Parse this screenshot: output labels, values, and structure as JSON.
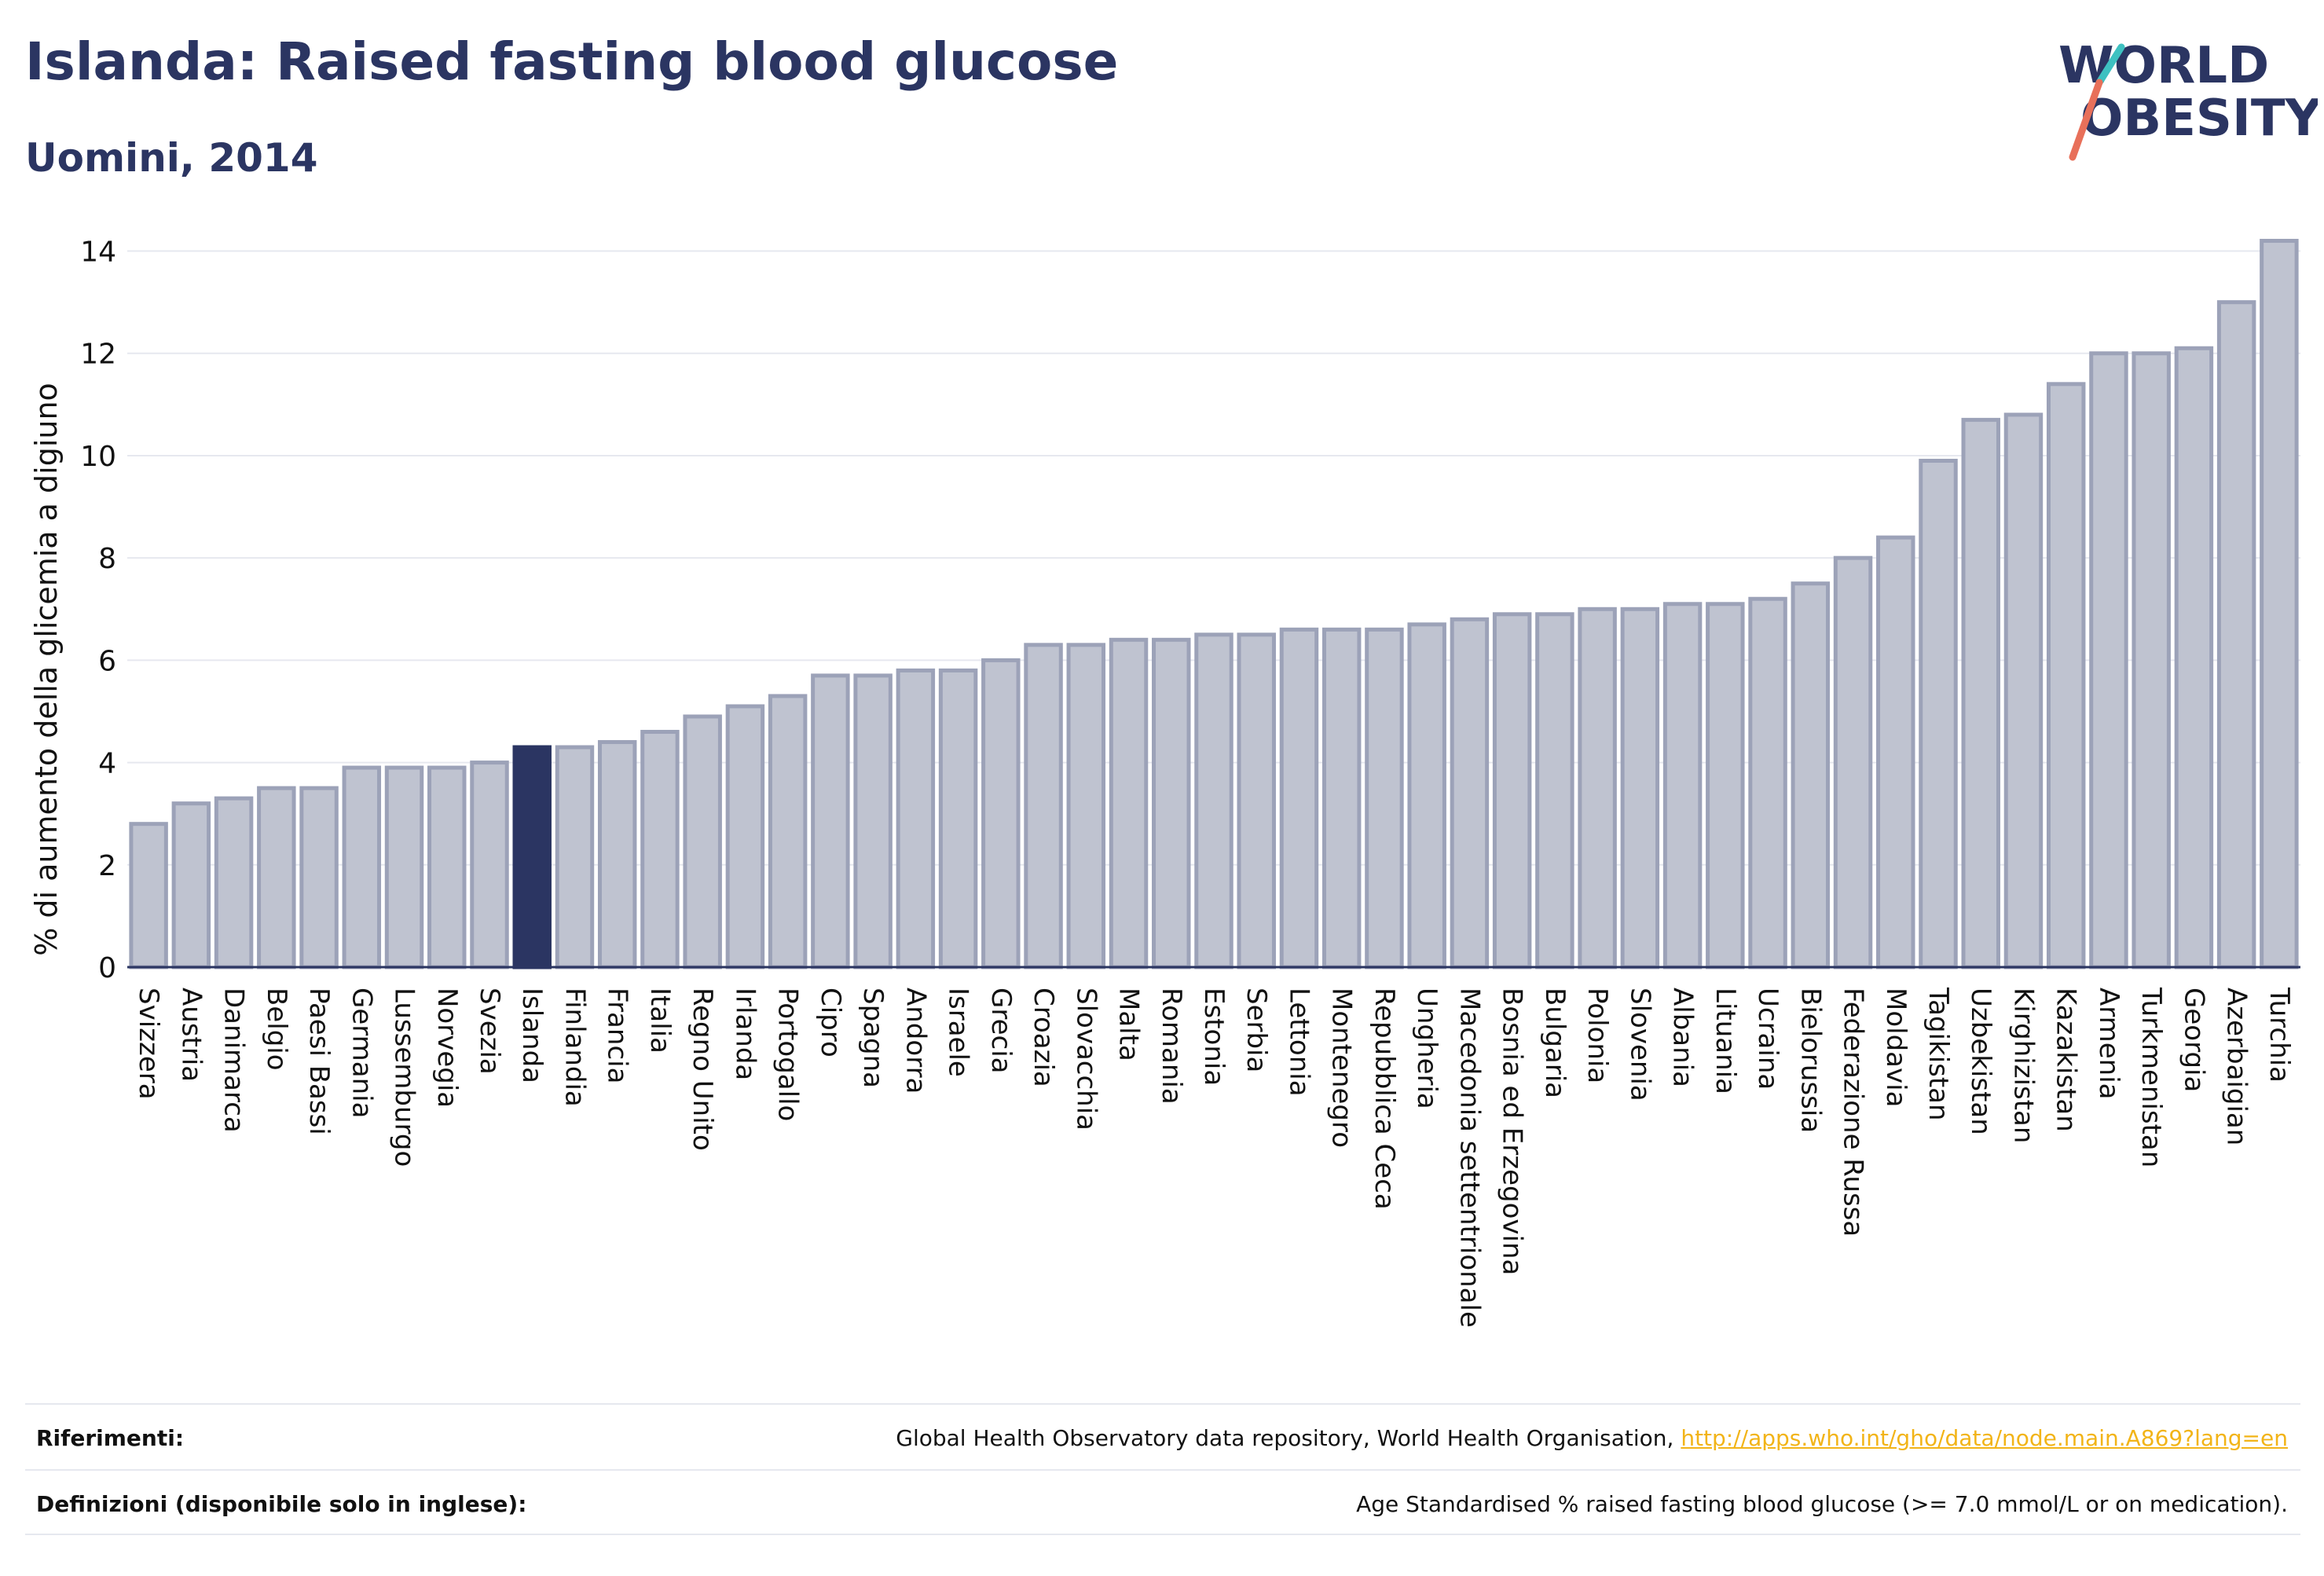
{
  "header": {
    "title": "Islanda: Raised fasting blood glucose",
    "subtitle": "Uomini, 2014"
  },
  "logo": {
    "line1": "WORLD",
    "line2": "OBESITY"
  },
  "colors": {
    "text_primary": "#2b3562",
    "bar_fill": "#bfc3d0",
    "bar_stroke": "#9ca2b8",
    "highlight": "#2b3562",
    "grid": "#e6e8ef",
    "link": "#f2b418",
    "logo_teal": "#3ec1c1",
    "logo_coral": "#e8705a"
  },
  "chart_data": {
    "type": "bar",
    "title": "",
    "xlabel": "",
    "ylabel": "% di aumento della glicemia a digiuno",
    "ylim": [
      0,
      14.3
    ],
    "yticks": [
      0,
      2,
      4,
      6,
      8,
      10,
      12,
      14
    ],
    "grid": true,
    "highlight": "Islanda",
    "categories": [
      "Svizzera",
      "Austria",
      "Danimarca",
      "Belgio",
      "Paesi Bassi",
      "Germania",
      "Lussemburgo",
      "Norvegia",
      "Svezia",
      "Islanda",
      "Finlandia",
      "Francia",
      "Italia",
      "Regno Unito",
      "Irlanda",
      "Portogallo",
      "Cipro",
      "Spagna",
      "Andorra",
      "Israele",
      "Grecia",
      "Croazia",
      "Slovacchia",
      "Malta",
      "Romania",
      "Estonia",
      "Serbia",
      "Lettonia",
      "Montenegro",
      "Repubblica Ceca",
      "Ungheria",
      "Macedonia settentrionale",
      "Bosnia ed Erzegovina",
      "Bulgaria",
      "Polonia",
      "Slovenia",
      "Albania",
      "Lituania",
      "Ucraina",
      "Bielorussia",
      "Federazione Russa",
      "Moldavia",
      "Tagikistan",
      "Uzbekistan",
      "Kirghizistan",
      "Kazakistan",
      "Armenia",
      "Turkmenistan",
      "Georgia",
      "Azerbaigian",
      "Turchia"
    ],
    "values": [
      2.8,
      3.2,
      3.3,
      3.5,
      3.5,
      3.9,
      3.9,
      3.9,
      4.0,
      4.3,
      4.3,
      4.4,
      4.6,
      4.9,
      5.1,
      5.3,
      5.7,
      5.7,
      5.8,
      5.8,
      6.0,
      6.3,
      6.3,
      6.4,
      6.4,
      6.5,
      6.5,
      6.6,
      6.6,
      6.6,
      6.7,
      6.8,
      6.9,
      6.9,
      7.0,
      7.0,
      7.1,
      7.1,
      7.2,
      7.5,
      8.0,
      8.4,
      9.9,
      10.7,
      10.8,
      11.4,
      12.0,
      12.0,
      12.1,
      13.0,
      14.2
    ]
  },
  "footer": {
    "references_label": "Riferimenti:",
    "references_text": "Global Health Observatory data repository, World Health Organisation, ",
    "references_link": "http://apps.who.int/gho/data/node.main.A869?lang=en",
    "definitions_label": "Definizioni (disponibile solo in inglese):",
    "definitions_text": "Age Standardised % raised fasting blood glucose (>= 7.0 mmol/L or on medication)."
  }
}
